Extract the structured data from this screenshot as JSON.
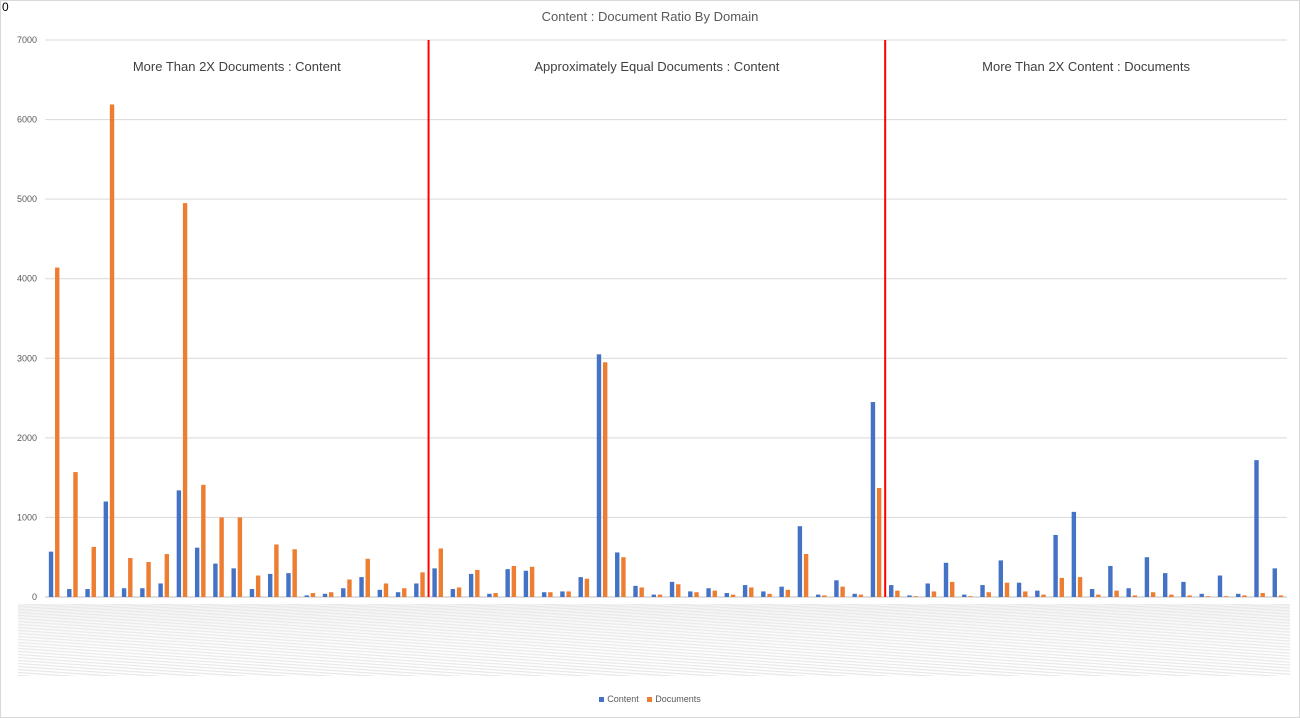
{
  "corner_label": "0",
  "chart_data": {
    "type": "bar",
    "title": "Content : Document Ratio By Domain",
    "xlabel": "",
    "ylabel": "",
    "ylim": [
      0,
      7000
    ],
    "yticks": [
      0,
      1000,
      2000,
      3000,
      4000,
      5000,
      6000,
      7000
    ],
    "grid": true,
    "legend_position": "bottom",
    "colors": {
      "content": "#4472c4",
      "documents": "#ed7d31",
      "divider": "#ff0000",
      "grid": "#d9d9d9"
    },
    "sections": [
      {
        "label": "More Than 2X Documents : Content",
        "start_index": 0,
        "end_index": 20
      },
      {
        "label": "Approximately Equal Documents : Content",
        "start_index": 21,
        "end_index": 45
      },
      {
        "label": "More Than 2X Content : Documents",
        "start_index": 46,
        "end_index": 67
      }
    ],
    "dividers_after_index": [
      20,
      45
    ],
    "series": [
      {
        "name": "Content",
        "values": [
          570,
          100,
          100,
          1200,
          110,
          110,
          170,
          1340,
          620,
          420,
          360,
          100,
          290,
          300,
          20,
          40,
          110,
          250,
          90,
          60,
          170,
          360,
          100,
          290,
          40,
          350,
          330,
          60,
          70,
          250,
          3050,
          560,
          140,
          30,
          190,
          70,
          110,
          50,
          150,
          70,
          130,
          890,
          30,
          210,
          40,
          2450,
          150,
          20,
          170,
          430,
          30,
          150,
          460,
          180,
          80,
          780,
          1070,
          100,
          390,
          110,
          500,
          300,
          190,
          40,
          270,
          40,
          1720,
          360
        ]
      },
      {
        "name": "Documents",
        "values": [
          4140,
          1570,
          630,
          6190,
          490,
          440,
          540,
          4950,
          1410,
          1000,
          1000,
          270,
          660,
          600,
          50,
          60,
          220,
          480,
          170,
          110,
          310,
          610,
          120,
          340,
          50,
          390,
          380,
          60,
          70,
          230,
          2950,
          500,
          120,
          30,
          160,
          60,
          80,
          30,
          120,
          40,
          90,
          540,
          20,
          130,
          30,
          1370,
          80,
          10,
          70,
          190,
          10,
          60,
          180,
          70,
          30,
          240,
          250,
          30,
          80,
          20,
          60,
          30,
          20,
          10,
          10,
          20,
          50,
          20
        ]
      }
    ]
  }
}
